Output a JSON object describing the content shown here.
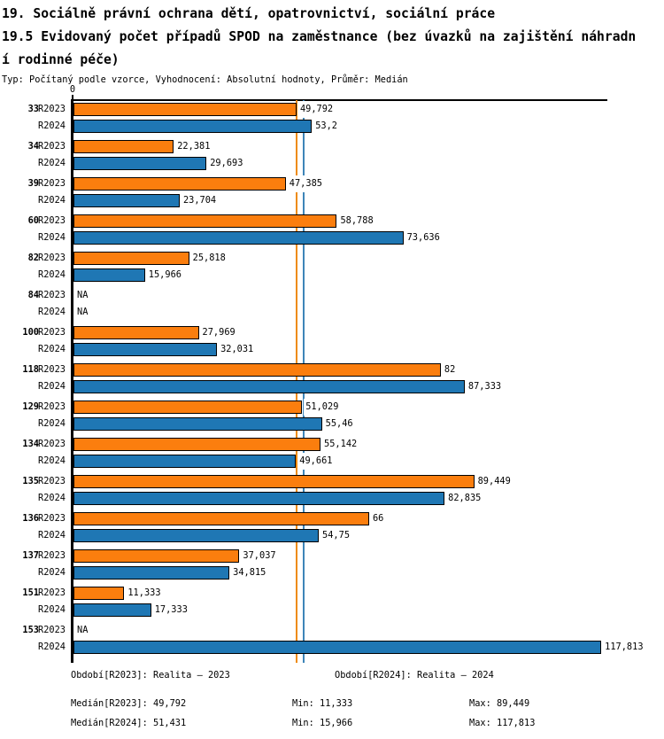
{
  "header": {
    "title": "19. Sociálně právní ochrana dětí, opatrovnictví, sociální práce",
    "subtitle": "19.5 Evidovaný počet případů SPOD na zaměstnance (bez úvazků na zajištění náhradní rodinné péče)",
    "meta": "Typ: Počítaný podle vzorce, Vyhodnocení: Absolutní hodnoty, Průměr: Medián"
  },
  "chart_data": {
    "type": "bar",
    "orientation": "horizontal",
    "title": "19.5 Evidovaný počet případů SPOD na zaměstnance (bez úvazků na zajištění náhradní rodinné péče)",
    "axis_zero_label": "0",
    "xlim": [
      0,
      132
    ],
    "grid": false,
    "legend_position": "none",
    "categories": [
      "33",
      "34",
      "39",
      "60",
      "82",
      "84",
      "100",
      "118",
      "129",
      "134",
      "135",
      "136",
      "137",
      "151",
      "153"
    ],
    "series": [
      {
        "name": "R2023",
        "color": "#fb7e0e",
        "values": [
          49.792,
          22.381,
          47.385,
          58.788,
          25.818,
          null,
          27.969,
          82,
          51.029,
          55.142,
          89.449,
          66,
          37.037,
          11.333,
          null
        ],
        "labels": [
          "49,792",
          "22,381",
          "47,385",
          "58,788",
          "25,818",
          "NA",
          "27,969",
          "82",
          "51,029",
          "55,142",
          "89,449",
          "66",
          "37,037",
          "11,333",
          "NA"
        ]
      },
      {
        "name": "R2024",
        "color": "#1f77b4",
        "values": [
          53.2,
          29.693,
          23.704,
          73.636,
          15.966,
          null,
          32.031,
          87.333,
          55.46,
          49.661,
          82.835,
          54.75,
          34.815,
          17.333,
          117.813
        ],
        "labels": [
          "53,2",
          "29,693",
          "23,704",
          "73,636",
          "15,966",
          "NA",
          "32,031",
          "87,333",
          "55,46",
          "49,661",
          "82,835",
          "54,75",
          "34,815",
          "17,333",
          "117,813"
        ]
      }
    ],
    "reference_lines": [
      {
        "name": "median-r2023",
        "value": 49.792,
        "color": "#ee8b10"
      },
      {
        "name": "median-r2024",
        "value": 51.431,
        "color": "#3d85b8"
      }
    ],
    "statistics": {
      "median_r2023": 49.792,
      "median_r2024": 51.431,
      "min_r2023": 11.333,
      "min_r2024": 15.966,
      "max_r2023": 89.449,
      "max_r2024": 117.813
    }
  },
  "footer": {
    "period_r2023": "Období[R2023]: Realita – 2023",
    "period_r2024": "Období[R2024]: Realita – 2024",
    "median_r2023": "Medián[R2023]: 49,792",
    "median_r2024": "Medián[R2024]: 51,431",
    "min_r2023": "Min: 11,333",
    "min_r2024": "Min: 15,966",
    "max_r2023": "Max: 89,449",
    "max_r2024": "Max: 117,813"
  },
  "colors": {
    "bar_r2023": "#fb7e0e",
    "bar_r2024": "#1f77b4",
    "median_line_r2023": "#ee8b10",
    "median_line_r2024": "#3d85b8",
    "axis": "#000000",
    "background": "#ffffff"
  }
}
